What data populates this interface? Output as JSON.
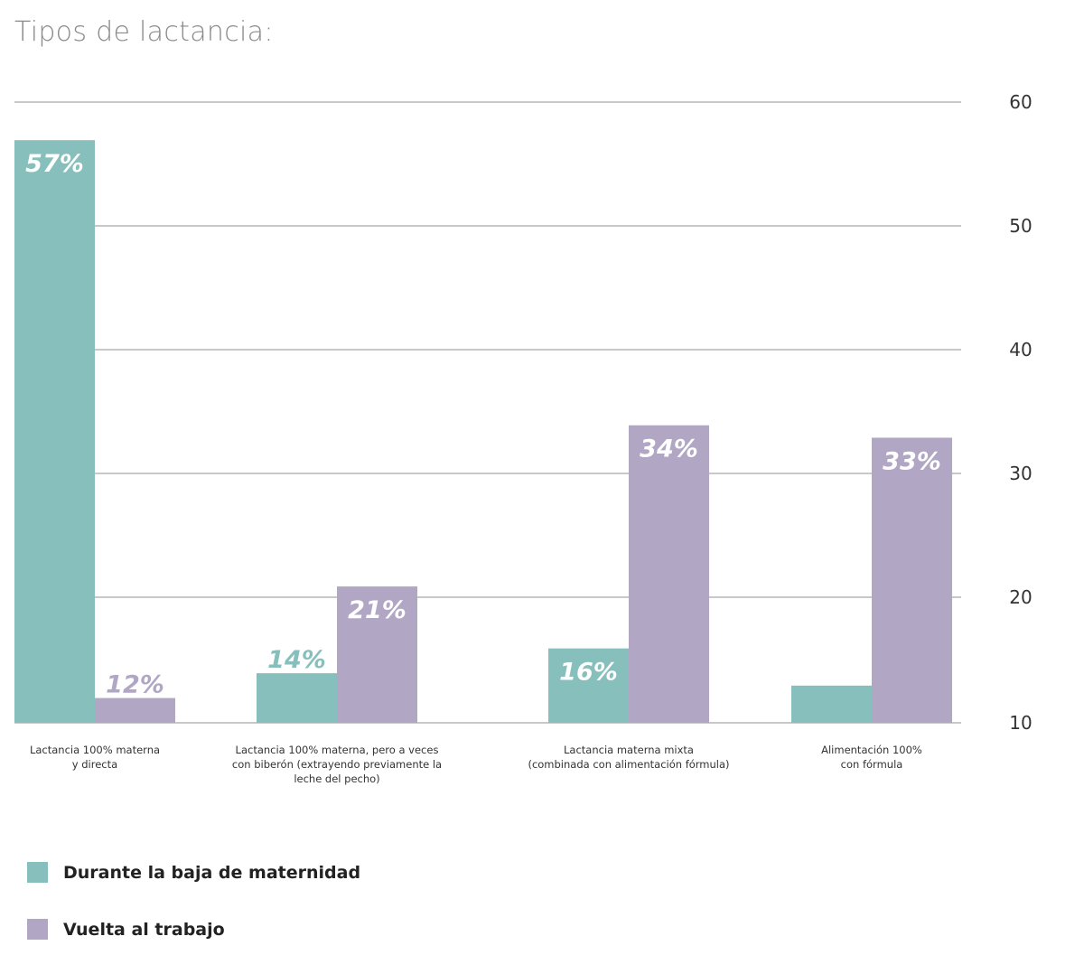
{
  "chart_data": {
    "type": "bar",
    "title": "Tipos de lactancia:",
    "categories": [
      [
        "Lactancia 100% materna",
        "y directa"
      ],
      [
        "Lactancia 100% materna, pero a veces",
        "con biberón (extrayendo previamente la",
        "leche del pecho)"
      ],
      [
        "Lactancia materna mixta",
        "(combinada con alimentación fórmula)"
      ],
      [
        "Alimentación 100%",
        "con fórmula"
      ]
    ],
    "series": [
      {
        "name": "Durante la baja de maternidad",
        "color": "#86bfbb",
        "values": [
          57,
          14,
          16,
          13
        ],
        "labels": [
          "57%",
          "14%",
          "16%",
          ""
        ]
      },
      {
        "name": "Vuelta al trabajo",
        "color": "#b1a7c4",
        "values": [
          12,
          21,
          34,
          33
        ],
        "labels": [
          "12%",
          "21%",
          "34%",
          "33%"
        ]
      }
    ],
    "yticks": [
      "60",
      "50",
      "40",
      "30",
      "20",
      "10"
    ],
    "ytick_values": [
      60,
      50,
      40,
      30,
      20,
      10
    ],
    "ylim": [
      10,
      60
    ],
    "grid": true,
    "legend_position": "bottom-left"
  }
}
